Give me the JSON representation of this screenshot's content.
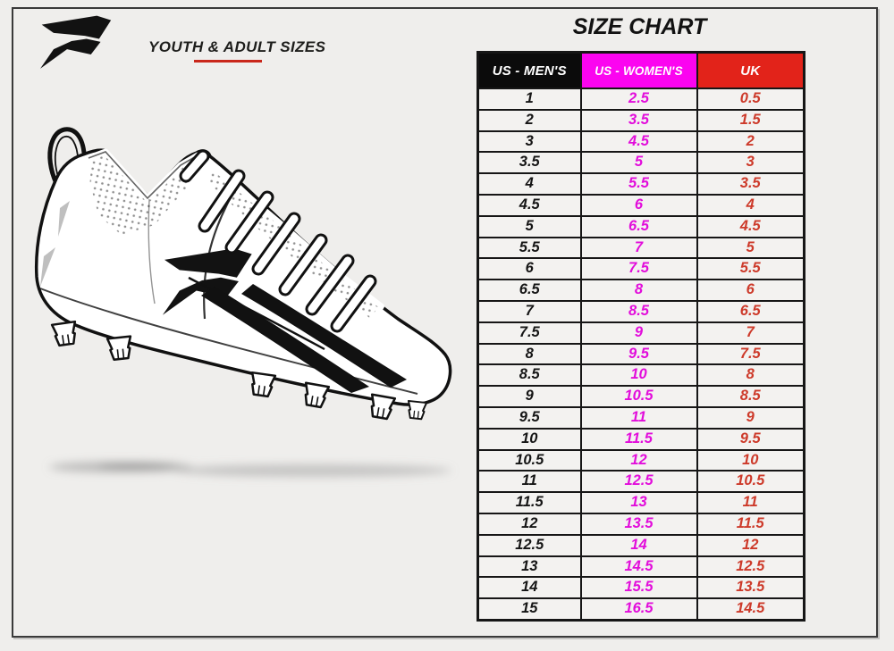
{
  "branding": {
    "logo": "phenom-p-logo",
    "subtitle": "YOUTH & ADULT SIZES"
  },
  "illustration": {
    "name": "football-cleat-line-drawing",
    "features": [
      "heel-pull-loop",
      "dotted-mesh-collar",
      "laces",
      "phenom-p-logo-on-side",
      "two-black-stripes",
      "cleat-studs",
      "ground-shadow"
    ]
  },
  "size_chart": {
    "title": "SIZE CHART",
    "columns": [
      {
        "label": "US - MEN'S",
        "header_bg": "#0b0b0b",
        "header_text": "#ffffff",
        "value_color": "#151515"
      },
      {
        "label": "US - WOMEN'S",
        "header_bg": "#fb04f0",
        "header_text": "#ffffff",
        "value_color": "#e20ddb"
      },
      {
        "label": "UK",
        "header_bg": "#e2231a",
        "header_text": "#ffffff",
        "value_color": "#cd3a2a"
      }
    ],
    "rows": [
      [
        "1",
        "2.5",
        "0.5"
      ],
      [
        "2",
        "3.5",
        "1.5"
      ],
      [
        "3",
        "4.5",
        "2"
      ],
      [
        "3.5",
        "5",
        "3"
      ],
      [
        "4",
        "5.5",
        "3.5"
      ],
      [
        "4.5",
        "6",
        "4"
      ],
      [
        "5",
        "6.5",
        "4.5"
      ],
      [
        "5.5",
        "7",
        "5"
      ],
      [
        "6",
        "7.5",
        "5.5"
      ],
      [
        "6.5",
        "8",
        "6"
      ],
      [
        "7",
        "8.5",
        "6.5"
      ],
      [
        "7.5",
        "9",
        "7"
      ],
      [
        "8",
        "9.5",
        "7.5"
      ],
      [
        "8.5",
        "10",
        "8"
      ],
      [
        "9",
        "10.5",
        "8.5"
      ],
      [
        "9.5",
        "11",
        "9"
      ],
      [
        "10",
        "11.5",
        "9.5"
      ],
      [
        "10.5",
        "12",
        "10"
      ],
      [
        "11",
        "12.5",
        "10.5"
      ],
      [
        "11.5",
        "13",
        "11"
      ],
      [
        "12",
        "13.5",
        "11.5"
      ],
      [
        "12.5",
        "14",
        "12"
      ],
      [
        "13",
        "14.5",
        "12.5"
      ],
      [
        "14",
        "15.5",
        "13.5"
      ],
      [
        "15",
        "16.5",
        "14.5"
      ]
    ]
  },
  "chart_data": {
    "type": "table",
    "title": "SIZE CHART",
    "columns": [
      "US - MEN'S",
      "US - WOMEN'S",
      "UK"
    ],
    "rows": [
      [
        "1",
        "2.5",
        "0.5"
      ],
      [
        "2",
        "3.5",
        "1.5"
      ],
      [
        "3",
        "4.5",
        "2"
      ],
      [
        "3.5",
        "5",
        "3"
      ],
      [
        "4",
        "5.5",
        "3.5"
      ],
      [
        "4.5",
        "6",
        "4"
      ],
      [
        "5",
        "6.5",
        "4.5"
      ],
      [
        "5.5",
        "7",
        "5"
      ],
      [
        "6",
        "7.5",
        "5.5"
      ],
      [
        "6.5",
        "8",
        "6"
      ],
      [
        "7",
        "8.5",
        "6.5"
      ],
      [
        "7.5",
        "9",
        "7"
      ],
      [
        "8",
        "9.5",
        "7.5"
      ],
      [
        "8.5",
        "10",
        "8"
      ],
      [
        "9",
        "10.5",
        "8.5"
      ],
      [
        "9.5",
        "11",
        "9"
      ],
      [
        "10",
        "11.5",
        "9.5"
      ],
      [
        "10.5",
        "12",
        "10"
      ],
      [
        "11",
        "12.5",
        "10.5"
      ],
      [
        "11.5",
        "13",
        "11"
      ],
      [
        "12",
        "13.5",
        "11.5"
      ],
      [
        "12.5",
        "14",
        "12"
      ],
      [
        "13",
        "14.5",
        "12.5"
      ],
      [
        "14",
        "15.5",
        "13.5"
      ],
      [
        "15",
        "16.5",
        "14.5"
      ]
    ]
  },
  "colors": {
    "page_bg": "#efeeec",
    "accent_red": "#c9271b",
    "table_border": "#161616",
    "mens_header_bg": "#0b0b0b",
    "womens_header_bg": "#fb04f0",
    "uk_header_bg": "#e2231a",
    "womens_value": "#e20ddb",
    "uk_value": "#cd3a2a"
  }
}
